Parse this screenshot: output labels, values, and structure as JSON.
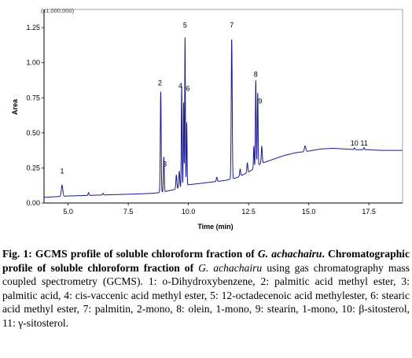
{
  "chart_data": {
    "type": "line",
    "multiplier_label": "(x1,000,000)",
    "xlabel": "Time (min)",
    "ylabel": "Area",
    "xlim": [
      4.0,
      18.9
    ],
    "ylim": [
      0.0,
      1.38
    ],
    "x_ticks": [
      5.0,
      7.5,
      10.0,
      12.5,
      15.0,
      17.5
    ],
    "x_tick_labels": [
      "5.0",
      "7.5",
      "10.0",
      "12.5",
      "15.0",
      "17.5"
    ],
    "y_ticks": [
      0.0,
      0.25,
      0.5,
      0.75,
      1.0,
      1.25
    ],
    "y_tick_labels": [
      "0.00",
      "0.25",
      "0.50",
      "0.75",
      "1.00",
      "1.25"
    ],
    "grid": false,
    "series": [
      {
        "color": "#1a1a8c",
        "baseline": [
          [
            4.0,
            0.04
          ],
          [
            4.5,
            0.045
          ],
          [
            5.0,
            0.05
          ],
          [
            6.0,
            0.055
          ],
          [
            7.0,
            0.06
          ],
          [
            8.0,
            0.065
          ],
          [
            8.6,
            0.07
          ],
          [
            9.0,
            0.08
          ],
          [
            9.5,
            0.1
          ],
          [
            10.0,
            0.13
          ],
          [
            10.5,
            0.14
          ],
          [
            11.0,
            0.15
          ],
          [
            11.5,
            0.16
          ],
          [
            12.0,
            0.18
          ],
          [
            12.5,
            0.22
          ],
          [
            13.0,
            0.28
          ],
          [
            13.5,
            0.31
          ],
          [
            14.0,
            0.34
          ],
          [
            14.5,
            0.36
          ],
          [
            15.0,
            0.37
          ],
          [
            15.5,
            0.385
          ],
          [
            16.0,
            0.39
          ],
          [
            16.5,
            0.385
          ],
          [
            17.0,
            0.38
          ],
          [
            17.5,
            0.38
          ],
          [
            18.0,
            0.375
          ],
          [
            18.9,
            0.375
          ]
        ],
        "peaks": [
          {
            "x": 4.75,
            "h": 0.08,
            "w": 0.03
          },
          {
            "x": 5.85,
            "h": 0.02,
            "w": 0.02
          },
          {
            "x": 6.45,
            "h": 0.012,
            "w": 0.02
          },
          {
            "x": 8.85,
            "h": 0.72,
            "w": 0.018
          },
          {
            "x": 8.98,
            "h": 0.25,
            "w": 0.018
          },
          {
            "x": 9.5,
            "h": 0.1,
            "w": 0.02
          },
          {
            "x": 9.62,
            "h": 0.12,
            "w": 0.02
          },
          {
            "x": 9.72,
            "h": 0.72,
            "w": 0.015
          },
          {
            "x": 9.8,
            "h": 0.6,
            "w": 0.014
          },
          {
            "x": 9.86,
            "h": 1.06,
            "w": 0.014
          },
          {
            "x": 9.93,
            "h": 0.45,
            "w": 0.014
          },
          {
            "x": 11.18,
            "h": 0.03,
            "w": 0.02
          },
          {
            "x": 11.8,
            "h": 1.0,
            "w": 0.02
          },
          {
            "x": 12.15,
            "h": 0.05,
            "w": 0.02
          },
          {
            "x": 12.45,
            "h": 0.07,
            "w": 0.02
          },
          {
            "x": 12.72,
            "h": 0.16,
            "w": 0.015
          },
          {
            "x": 12.8,
            "h": 0.62,
            "w": 0.016
          },
          {
            "x": 12.88,
            "h": 0.52,
            "w": 0.016
          },
          {
            "x": 13.05,
            "h": 0.12,
            "w": 0.02
          },
          {
            "x": 14.85,
            "h": 0.04,
            "w": 0.03
          },
          {
            "x": 16.9,
            "h": 0.012,
            "w": 0.02
          },
          {
            "x": 17.3,
            "h": 0.015,
            "w": 0.02
          }
        ]
      }
    ],
    "peak_labels": [
      {
        "text": "1",
        "x": 4.75,
        "y": 0.21
      },
      {
        "text": "2",
        "x": 8.82,
        "y": 0.84
      },
      {
        "text": "3",
        "x": 9.02,
        "y": 0.26
      },
      {
        "text": "4",
        "x": 9.67,
        "y": 0.82
      },
      {
        "text": "5",
        "x": 9.86,
        "y": 1.25
      },
      {
        "text": "6",
        "x": 9.98,
        "y": 0.8
      },
      {
        "text": "7",
        "x": 11.8,
        "y": 1.25
      },
      {
        "text": "8",
        "x": 12.8,
        "y": 0.9
      },
      {
        "text": "9",
        "x": 12.98,
        "y": 0.71
      },
      {
        "text": "10",
        "x": 16.9,
        "y": 0.41
      },
      {
        "text": "11",
        "x": 17.3,
        "y": 0.41
      }
    ]
  },
  "caption": {
    "fig_no": "Fig. 1:",
    "title_1": " GCMS profile of soluble chloroform fraction of ",
    "title_species": "G. achachairu",
    "title_2": ". Chromatographic profile of soluble chloroform fraction of ",
    "body_species": "G. achachairu",
    "body": " using gas chromatography mass coupled spectrometry (GCMS). 1: o-Dihydroxybenzene, 2: palmitic acid methyl ester, 3: palmitic acid, 4: cis-vaccenic acid methyl ester, 5: 12-octadecenoic acid methylester, 6: stearic acid methyl ester, 7: palmitin, 2-mono, 8: olein, 1-mono, 9: stearin, 1-mono, 10: β-sitosterol, 11: γ-sitosterol."
  }
}
